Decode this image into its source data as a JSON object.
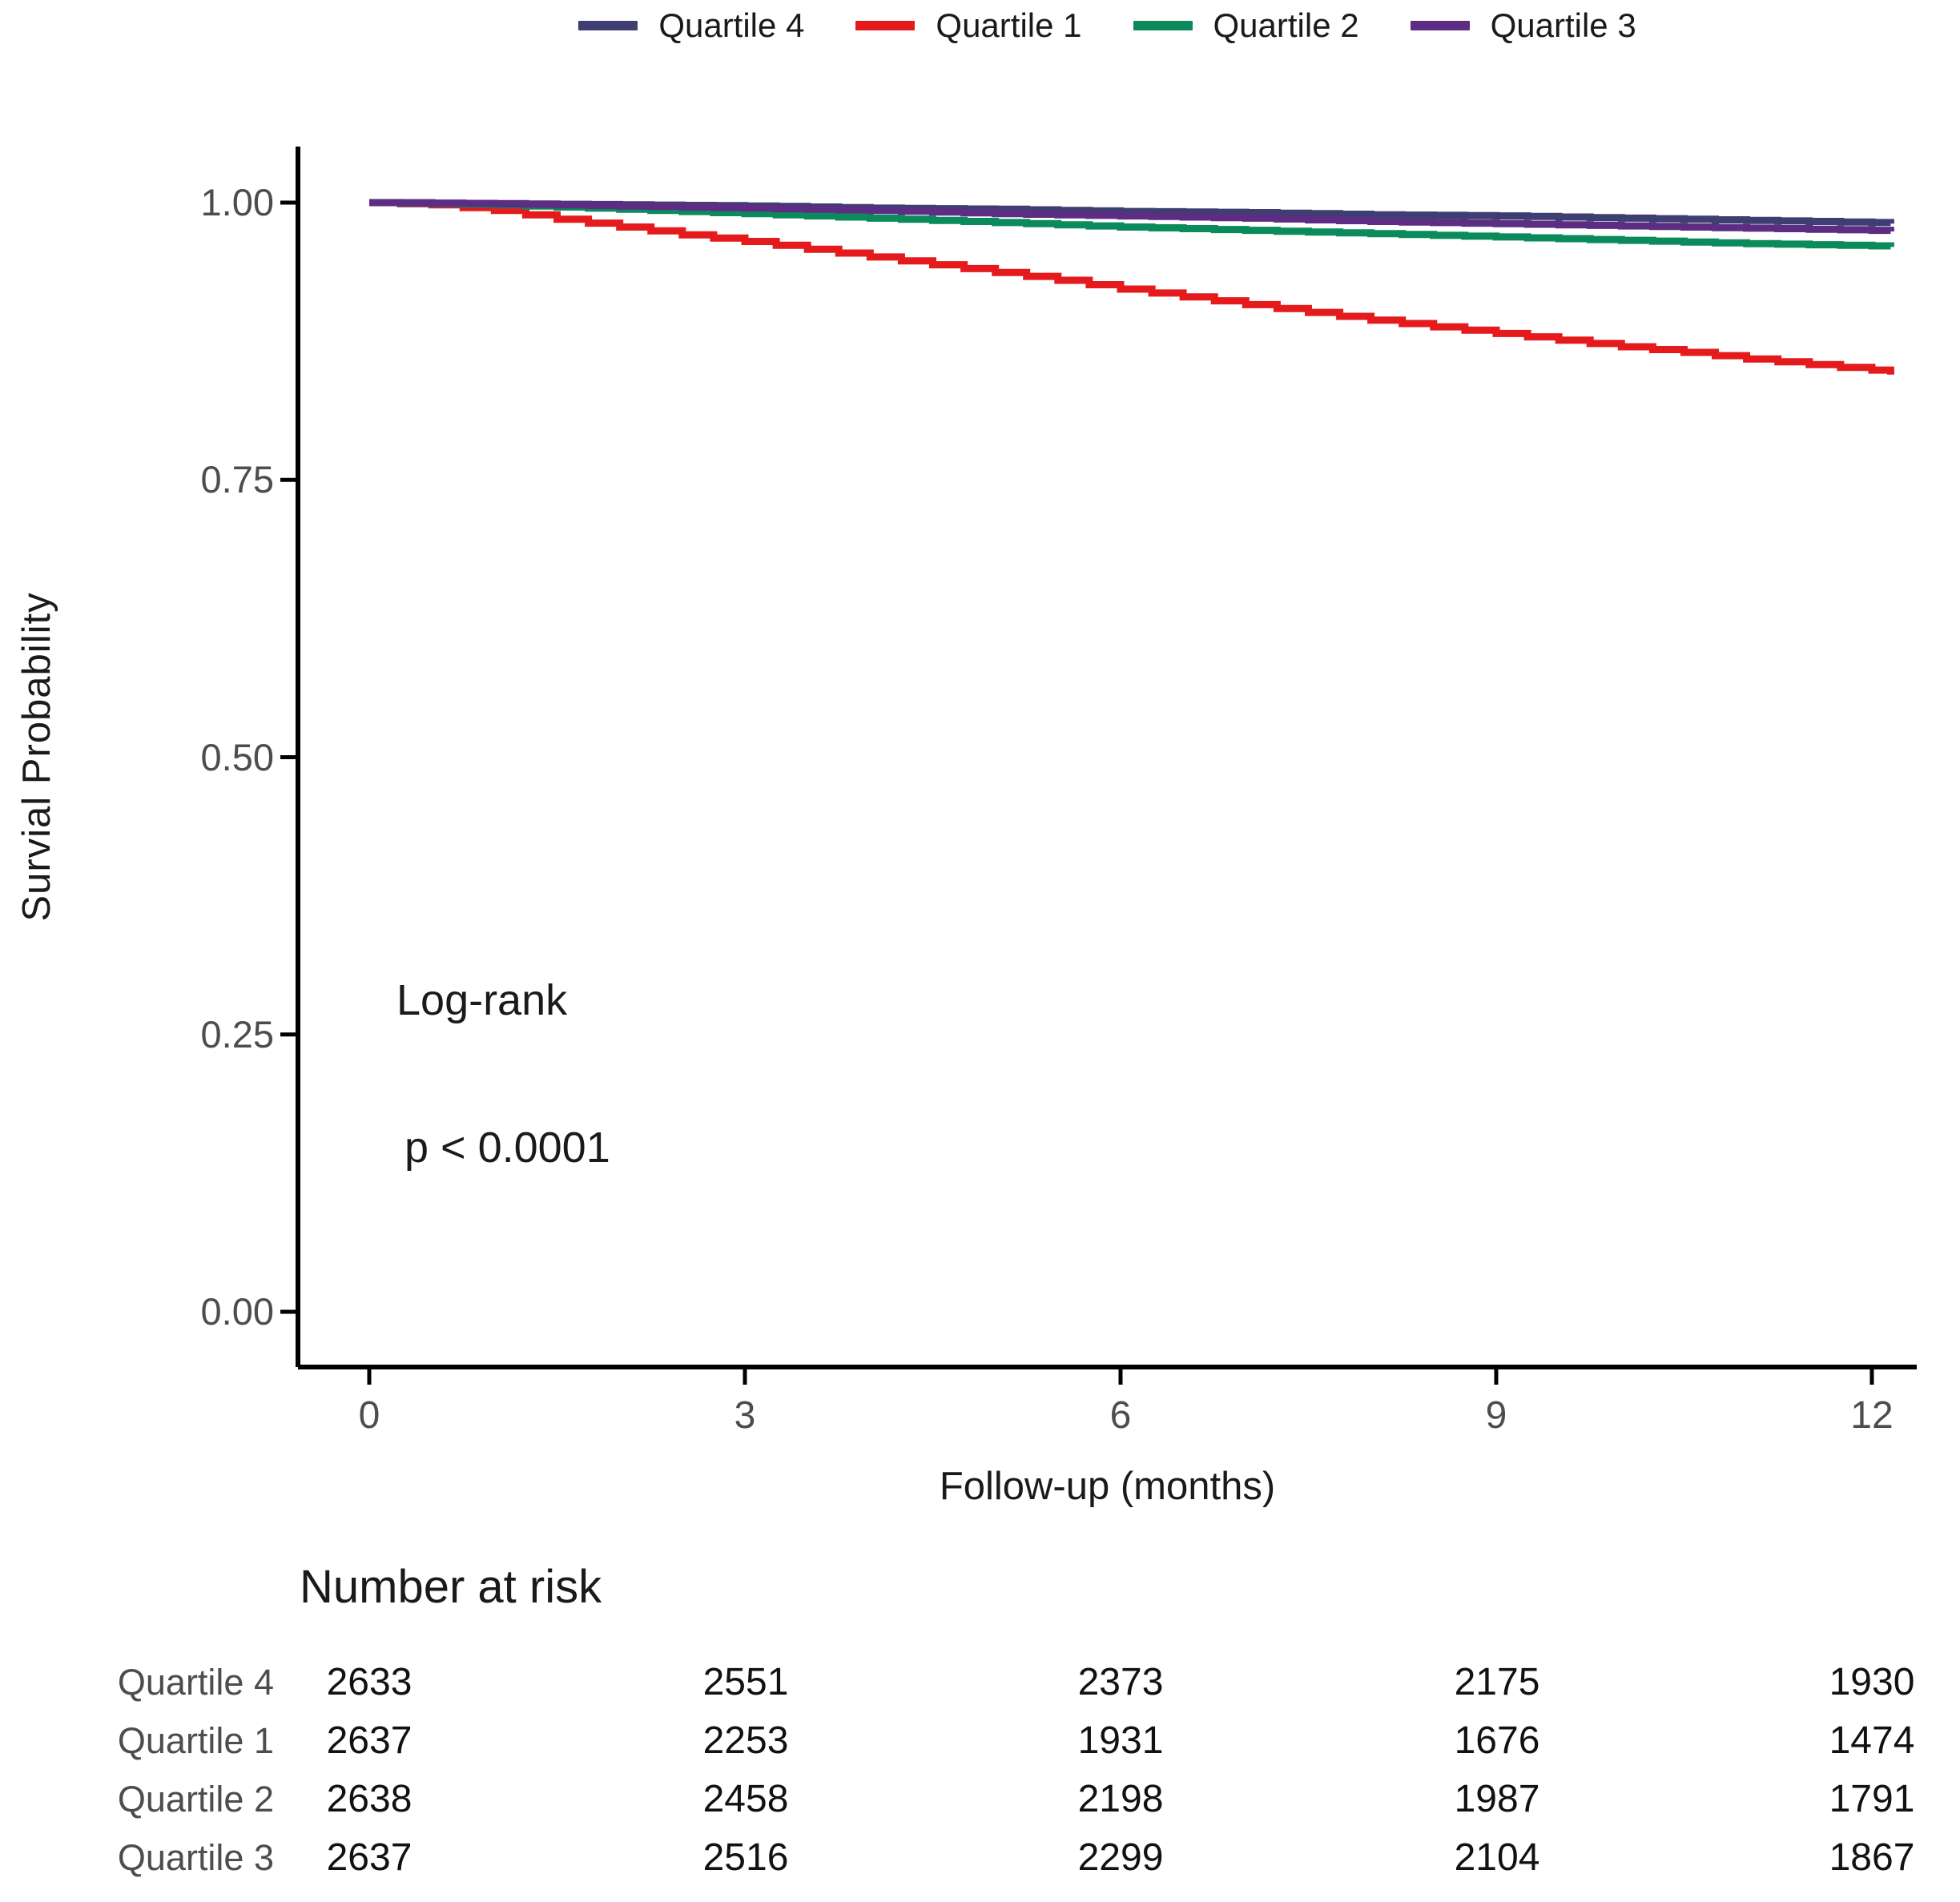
{
  "legend": {
    "note": "legend items derive from chart series in displayed order"
  },
  "chart_data": {
    "type": "line",
    "subtype": "kaplan-meier-step",
    "title": "",
    "xlabel": "Follow-up (months)",
    "ylabel": "Survial Probability",
    "xlim": [
      0,
      12.3
    ],
    "ylim": [
      0,
      1.05
    ],
    "grid": false,
    "legend_position": "top",
    "x_ticks": [
      {
        "label": "0",
        "value": 0
      },
      {
        "label": "3",
        "value": 3
      },
      {
        "label": "6",
        "value": 6
      },
      {
        "label": "9",
        "value": 9
      },
      {
        "label": "12",
        "value": 12
      }
    ],
    "y_ticks": [
      {
        "label": "1.00",
        "value": 1.0
      },
      {
        "label": "0.75",
        "value": 0.75
      },
      {
        "label": "0.50",
        "value": 0.5
      },
      {
        "label": "0.25",
        "value": 0.25
      },
      {
        "label": "0.00",
        "value": 0.0
      }
    ],
    "annotation": {
      "line1": "Log-rank",
      "line2": "p < 0.0001"
    },
    "series": [
      {
        "name": "Quartile 4",
        "color": "#3E3E72",
        "x": [
          0,
          1,
          2,
          3,
          4,
          5,
          6,
          7,
          8,
          9,
          10,
          11,
          12,
          12.15
        ],
        "y": [
          1.0,
          0.999,
          0.998,
          0.997,
          0.995,
          0.994,
          0.992,
          0.991,
          0.989,
          0.988,
          0.986,
          0.984,
          0.982,
          0.981
        ]
      },
      {
        "name": "Quartile 1",
        "color": "#E41A1C",
        "x": [
          0,
          0.5,
          1,
          1.5,
          2,
          2.5,
          3,
          3.5,
          4,
          4.5,
          5,
          5.5,
          6,
          6.5,
          7,
          7.5,
          8,
          8.5,
          9,
          9.5,
          10,
          10.5,
          11,
          11.5,
          12,
          12.15
        ],
        "y": [
          1.0,
          0.998,
          0.993,
          0.985,
          0.978,
          0.971,
          0.965,
          0.958,
          0.951,
          0.944,
          0.937,
          0.93,
          0.922,
          0.915,
          0.908,
          0.901,
          0.894,
          0.888,
          0.882,
          0.876,
          0.87,
          0.865,
          0.859,
          0.854,
          0.849,
          0.845
        ]
      },
      {
        "name": "Quartile 2",
        "color": "#0B8A5B",
        "x": [
          0,
          1,
          2,
          3,
          4,
          5,
          6,
          7,
          8,
          9,
          10,
          11,
          12,
          12.15
        ],
        "y": [
          1.0,
          0.998,
          0.994,
          0.99,
          0.986,
          0.982,
          0.978,
          0.975,
          0.972,
          0.969,
          0.966,
          0.963,
          0.961,
          0.96
        ]
      },
      {
        "name": "Quartile 3",
        "color": "#5C2D83",
        "x": [
          0,
          1,
          2,
          3,
          4,
          5,
          6,
          7,
          8,
          9,
          10,
          11,
          12,
          12.15
        ],
        "y": [
          1.0,
          0.999,
          0.997,
          0.995,
          0.993,
          0.99,
          0.988,
          0.986,
          0.983,
          0.981,
          0.979,
          0.977,
          0.975,
          0.974
        ]
      }
    ]
  },
  "risk_table": {
    "heading": "Number at risk",
    "columns": [
      0,
      3,
      6,
      9,
      12
    ],
    "rows": [
      {
        "label": "Quartile 4",
        "values": [
          "2633",
          "2551",
          "2373",
          "2175",
          "1930"
        ]
      },
      {
        "label": "Quartile 1",
        "values": [
          "2637",
          "2253",
          "1931",
          "1676",
          "1474"
        ]
      },
      {
        "label": "Quartile 2",
        "values": [
          "2638",
          "2458",
          "2198",
          "1987",
          "1791"
        ]
      },
      {
        "label": "Quartile 3",
        "values": [
          "2637",
          "2516",
          "2299",
          "2104",
          "1867"
        ]
      }
    ]
  }
}
